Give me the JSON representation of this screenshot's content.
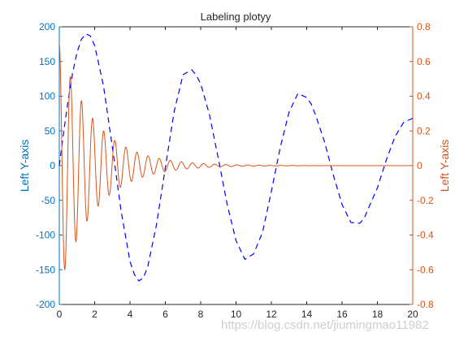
{
  "chart_data": {
    "type": "line",
    "title": "Labeling plotyy",
    "xlim": [
      0,
      20
    ],
    "x_ticks": [
      0,
      2,
      4,
      6,
      8,
      10,
      12,
      14,
      16,
      18,
      20
    ],
    "left_axis": {
      "label": "Left Y-axis",
      "color": "#0072BD",
      "ylim": [
        -200,
        200
      ],
      "ticks": [
        -200,
        -150,
        -100,
        -50,
        0,
        50,
        100,
        150,
        200
      ]
    },
    "right_axis": {
      "label": "Left Y-axis",
      "color": "#D95319",
      "ylim": [
        -0.8,
        0.8
      ],
      "ticks": [
        -0.8,
        -0.6,
        -0.4,
        -0.2,
        0,
        0.2,
        0.4,
        0.6,
        0.8
      ]
    },
    "series": [
      {
        "axis": "left",
        "style": "dashed",
        "color": "#0000FF",
        "x": [
          0,
          0.25,
          0.5,
          0.75,
          1.0,
          1.25,
          1.5,
          1.75,
          2.0,
          2.5,
          3.0,
          3.5,
          4.0,
          4.25,
          4.5,
          4.75,
          5.0,
          5.5,
          6.0,
          6.5,
          7.0,
          7.5,
          7.75,
          8.0,
          8.5,
          9.0,
          9.5,
          10.0,
          10.5,
          11.0,
          11.5,
          12.0,
          12.5,
          13.0,
          13.5,
          14.0,
          14.25,
          14.5,
          15.0,
          15.5,
          16.0,
          16.5,
          17.0,
          17.25,
          17.5,
          18.0,
          18.5,
          19.0,
          19.5,
          20.0
        ],
        "y": [
          0,
          49,
          94,
          133,
          163,
          182,
          190,
          187,
          173,
          115,
          27,
          -66,
          -138,
          -157,
          -166,
          -162,
          -146,
          -85,
          -3,
          78,
          131,
          138,
          130,
          118,
          73,
          10,
          -56,
          -108,
          -135,
          -127,
          -96,
          -37,
          26,
          77,
          104,
          98,
          89,
          73,
          35,
          -13,
          -56,
          -82,
          -83,
          -76,
          -61,
          -32,
          8,
          42,
          63,
          68
        ]
      },
      {
        "axis": "right",
        "style": "solid",
        "color": "#D95319",
        "formula": "0.7*exp(-0.5*x)*cos(10*x)",
        "x_range": [
          0,
          20
        ]
      }
    ]
  },
  "watermark": "https://blog.csdn.net/jiumingmao11982"
}
